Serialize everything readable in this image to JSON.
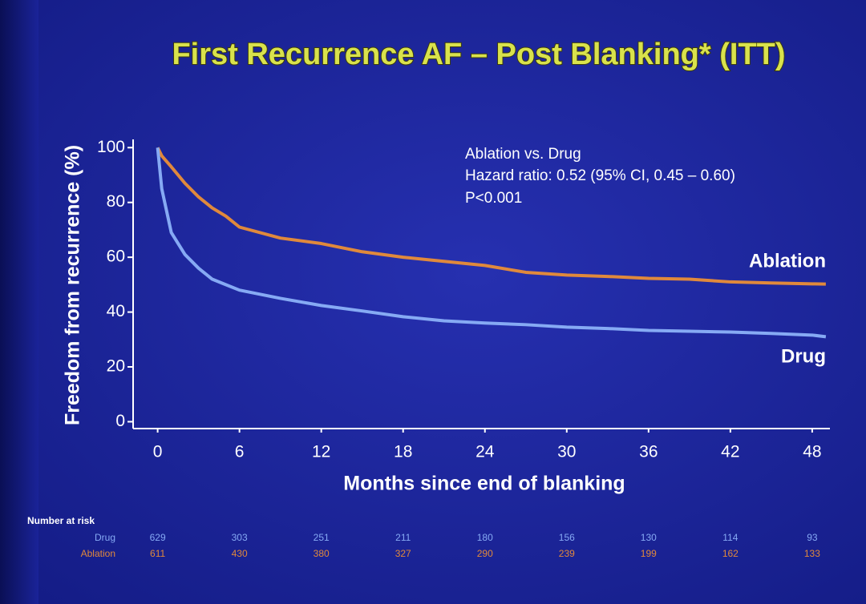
{
  "chart_data": {
    "type": "line",
    "title": "First Recurrence AF  – Post Blanking* (ITT)",
    "x_label": "Months since end of blanking",
    "y_label": "Freedom from recurrence (%)",
    "annotations": [
      "Ablation vs. Drug",
      "Hazard ratio:  0.52 (95% CI, 0.45 – 0.60)",
      "P<0.001"
    ],
    "x": [
      0,
      0.3,
      1,
      2,
      3,
      4,
      5,
      6,
      9,
      12,
      15,
      18,
      21,
      24,
      27,
      30,
      33,
      36,
      39,
      42,
      45,
      48,
      49
    ],
    "series": [
      {
        "name": "Ablation",
        "color": "#e0893c",
        "values": [
          100,
          97,
          93,
          87,
          82,
          78,
          75,
          71,
          67,
          65,
          62,
          60,
          58.5,
          57,
          54.5,
          53.5,
          53,
          52.3,
          52,
          51,
          50.6,
          50.3,
          50.2
        ]
      },
      {
        "name": "Drug",
        "color": "#86aaf4",
        "values": [
          100,
          85,
          69,
          61,
          56,
          52,
          50,
          48,
          45,
          42.4,
          40.4,
          38.3,
          36.8,
          36,
          35.4,
          34.5,
          34,
          33.3,
          33,
          32.7,
          32.2,
          31.6,
          31
        ]
      }
    ],
    "xlim": [
      -1.8,
      49.3
    ],
    "ylim": [
      -2.5,
      103
    ],
    "xticks": [
      0,
      6,
      12,
      18,
      24,
      30,
      36,
      42,
      48
    ],
    "yticks": [
      0,
      20,
      40,
      60,
      80,
      100
    ],
    "risk_table": {
      "title": "Number at risk",
      "rows": [
        {
          "label": "Drug",
          "color": "#86aaf4",
          "values": [
            "629",
            "303",
            "251",
            "211",
            "180",
            "156",
            "130",
            "114",
            "93"
          ]
        },
        {
          "label": "Ablation",
          "color": "#e0893c",
          "values": [
            "611",
            "430",
            "380",
            "327",
            "290",
            "239",
            "199",
            "162",
            "133"
          ]
        }
      ]
    }
  }
}
